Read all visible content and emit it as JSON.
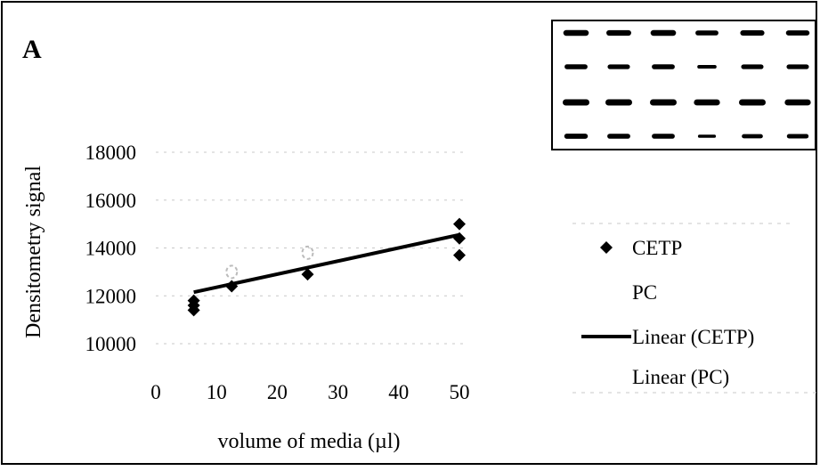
{
  "panel_label": "A",
  "colors": {
    "ink": "#000000",
    "pc_marker": "#bbbbbb",
    "gridline": "#c8c8c8"
  },
  "chart_data": {
    "type": "scatter",
    "title": "",
    "xlabel": "volume of media (µl)",
    "ylabel": "Densitometry signal",
    "xlim": [
      0,
      50
    ],
    "ylim": [
      10000,
      18000
    ],
    "x_ticks": [
      "0",
      "10",
      "20",
      "30",
      "40",
      "50"
    ],
    "y_ticks": [
      "10000",
      "12000",
      "14000",
      "16000",
      "18000"
    ],
    "grid": true,
    "legend_position": "right",
    "legend": [
      {
        "label": "CETP",
        "kind": "marker",
        "marker": "diamond"
      },
      {
        "label": "PC",
        "kind": "marker",
        "marker": "open-circle"
      },
      {
        "label": "Linear (CETP)",
        "kind": "line",
        "style": "solid"
      },
      {
        "label": "Linear (PC)",
        "kind": "line",
        "style": "none"
      }
    ],
    "series": [
      {
        "name": "CETP",
        "marker": "diamond",
        "points": [
          {
            "x": 6.25,
            "y": 11400
          },
          {
            "x": 6.25,
            "y": 11600
          },
          {
            "x": 6.25,
            "y": 11800
          },
          {
            "x": 12.5,
            "y": 12400
          },
          {
            "x": 25,
            "y": 12900
          },
          {
            "x": 50,
            "y": 13700
          },
          {
            "x": 50,
            "y": 14400
          },
          {
            "x": 50,
            "y": 15000
          }
        ]
      },
      {
        "name": "PC",
        "marker": "open-circle",
        "points": [
          {
            "x": 12.5,
            "y": 13000
          },
          {
            "x": 25,
            "y": 13800
          }
        ]
      }
    ],
    "trendlines": [
      {
        "name": "Linear (CETP)",
        "x": [
          6.25,
          50
        ],
        "y": [
          12150,
          14550
        ]
      }
    ],
    "inset": {
      "type": "western-blot",
      "lanes": 6,
      "rows": [
        {
          "intensity": [
            0.9,
            0.85,
            0.9,
            0.7,
            0.8,
            0.75
          ]
        },
        {
          "intensity": [
            0.7,
            0.65,
            0.7,
            0.4,
            0.65,
            0.65
          ]
        },
        {
          "intensity": [
            1.0,
            1.0,
            1.0,
            0.95,
            1.0,
            0.95
          ]
        },
        {
          "intensity": [
            0.75,
            0.7,
            0.7,
            0.3,
            0.55,
            0.6
          ]
        }
      ]
    }
  }
}
